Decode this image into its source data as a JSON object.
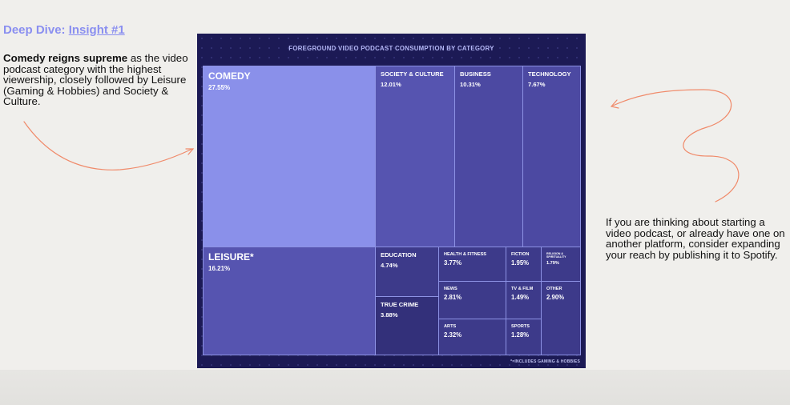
{
  "heading": {
    "prefix": "Deep Dive: ",
    "link": "Insight #1"
  },
  "left_note": {
    "bold": "Comedy reigns supreme",
    "rest": " as the video podcast category with the highest viewership, closely followed by Leisure (Gaming & Hobbies) and Society & Culture."
  },
  "right_note": "If you are thinking about starting a video podcast, or already have one on another platform, consider expanding your reach by publishing it to Spotify.",
  "colors": {
    "accent": "#8a8ff0",
    "panel_bg": "#1c1a55",
    "comedy": "#8a90ea",
    "arrow": "#f08a6a"
  },
  "chart_data": {
    "type": "treemap",
    "title": "FOREGROUND VIDEO PODCAST CONSUMPTION BY CATEGORY",
    "footnote": "*=INCLUDES GAMING & HOBBIES",
    "cells": [
      {
        "id": "comedy",
        "label": "COMEDY",
        "display": "27.55%",
        "value": 27.55
      },
      {
        "id": "society",
        "label": "SOCIETY & CULTURE",
        "display": "12.01%",
        "value": 12.01
      },
      {
        "id": "business",
        "label": "BUSINESS",
        "display": "10.31%",
        "value": 10.31
      },
      {
        "id": "technology",
        "label": "TECHNOLOGY",
        "display": "7.67%",
        "value": 7.67
      },
      {
        "id": "leisure",
        "label": "LEISURE*",
        "display": "16.21%",
        "value": 16.21
      },
      {
        "id": "education",
        "label": "EDUCATION",
        "display": "4.74%",
        "value": 4.74
      },
      {
        "id": "health",
        "label": "HEALTH & FITNESS",
        "display": "3.77%",
        "value": 3.77
      },
      {
        "id": "fiction",
        "label": "FICTION",
        "display": "1.95%",
        "value": 1.95
      },
      {
        "id": "religion",
        "label": "RELIGION & SPIRITUALITY",
        "display": "1.79%",
        "value": 1.79
      },
      {
        "id": "true_crime",
        "label": "TRUE CRIME",
        "display": "3.88%",
        "value": 3.88
      },
      {
        "id": "news",
        "label": "NEWS",
        "display": "2.81%",
        "value": 2.81
      },
      {
        "id": "tvfilm",
        "label": "TV & FILM",
        "display": "1.49%",
        "value": 1.49
      },
      {
        "id": "other",
        "label": "OTHER",
        "display": "2.90%",
        "value": 2.9
      },
      {
        "id": "arts",
        "label": "ARTS",
        "display": "2.32%",
        "value": 2.32
      },
      {
        "id": "sports",
        "label": "SPORTS",
        "display": "1.28%",
        "value": 1.28
      }
    ]
  }
}
